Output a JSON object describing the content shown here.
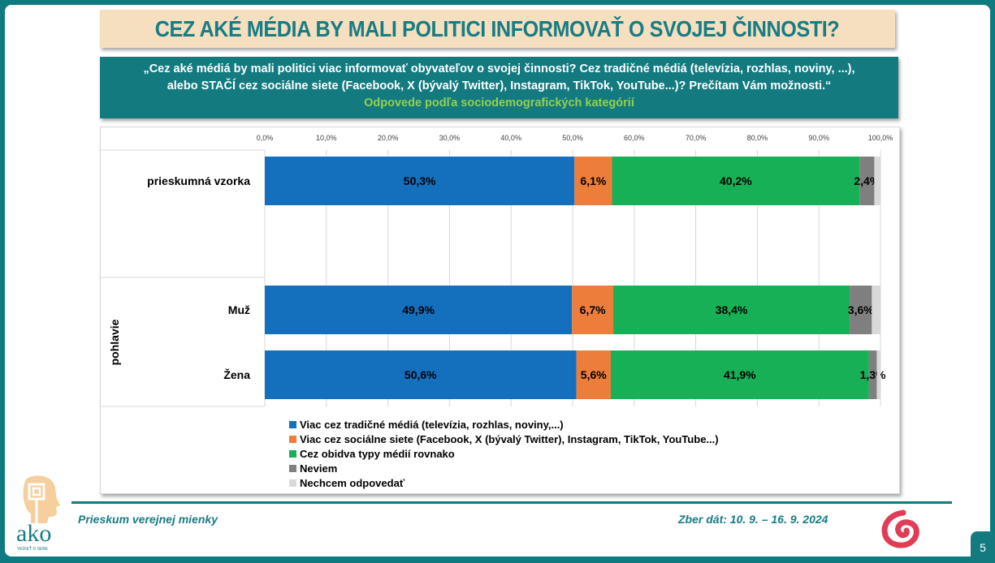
{
  "title": "CEZ AKÉ MÉDIA BY MALI POLITICI INFORMOVAŤ O SVOJEJ ČINNOSTI?",
  "question": {
    "line1": "„Cez aké médiá by mali politici viac informovať obyvateľov o svojej činnosti? Cez tradičné médiá (televízia, rozhlas, noviny, ...),",
    "line2": "alebo STAČÍ cez sociálne siete (Facebook, X (bývalý Twitter), Instagram, TikTok, YouTube...)? Prečítam Vám možnosti.“",
    "subtitle": "Odpovede podľa sociodemografických kategórií"
  },
  "chart_data": {
    "type": "bar",
    "orientation": "horizontal",
    "stacked": true,
    "percent": true,
    "xlim": [
      0,
      100
    ],
    "x_ticks": [
      "0,0%",
      "10,0%",
      "20,0%",
      "30,0%",
      "40,0%",
      "50,0%",
      "60,0%",
      "70,0%",
      "80,0%",
      "90,0%",
      "100,0%"
    ],
    "x_axis_position": "top",
    "grid": true,
    "categories": [
      "prieskumná vzorka",
      "Muž",
      "Žena"
    ],
    "category_groups": [
      {
        "label": "",
        "members": [
          "prieskumná vzorka"
        ]
      },
      {
        "label": "pohlavie",
        "members": [
          "Muž",
          "Žena"
        ]
      }
    ],
    "series": [
      {
        "name": "Viac cez tradičné médiá (televízia, rozhlas, noviny,...)",
        "color": "#1470bd",
        "values": [
          50.3,
          49.9,
          50.6
        ],
        "labels": [
          "50,3%",
          "49,9%",
          "50,6%"
        ]
      },
      {
        "name": "Viac cez sociálne siete (Facebook, X (bývalý Twitter), Instagram, TikTok, YouTube...)",
        "color": "#ed7d3a",
        "values": [
          6.1,
          6.7,
          5.6
        ],
        "labels": [
          "6,1%",
          "6,7%",
          "5,6%"
        ]
      },
      {
        "name": "Cez obidva typy médií rovnako",
        "color": "#18b056",
        "values": [
          40.2,
          38.4,
          41.9
        ],
        "labels": [
          "40,2%",
          "38,4%",
          "41,9%"
        ]
      },
      {
        "name": "Neviem",
        "color": "#7f7f7f",
        "values": [
          2.4,
          3.6,
          1.3
        ],
        "labels": [
          "2,4%",
          "3,6%",
          "1,3%"
        ]
      },
      {
        "name": "Nechcem odpovedať",
        "color": "#d9d9d9",
        "values": [
          1.0,
          1.4,
          0.6
        ],
        "labels": [
          "",
          "",
          ""
        ]
      }
    ],
    "legend_position": "bottom"
  },
  "footer": {
    "left": "Prieskum verejnej mienky",
    "right": "Zber dát: 10. 9. – 16. 9. 2024",
    "page_number": "5",
    "logo_text": "ako",
    "logo_tagline": "VEDIEŤ O SEBE"
  }
}
